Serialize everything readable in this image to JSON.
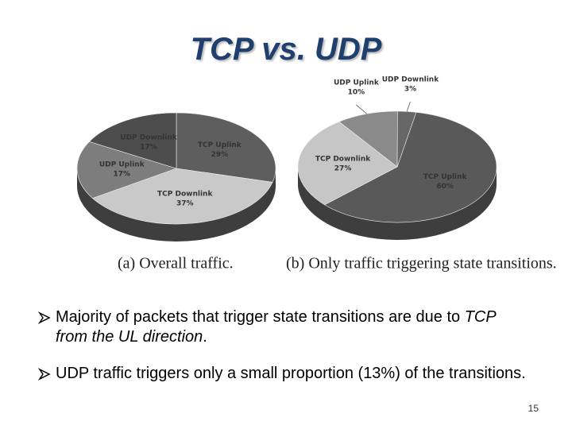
{
  "slide": {
    "title": "TCP vs. UDP",
    "bullets": [
      {
        "text": "Majority of packets that trigger state transitions are due to ",
        "emphasis": "TCP from the UL direction",
        "end": "."
      },
      {
        "text": "UDP traffic triggers only a small proportion (13%) of the transitions."
      }
    ],
    "page_number": 15
  },
  "chart_data": [
    {
      "type": "pie",
      "caption": "(a) Overall traffic.",
      "categories": [
        "TCP Uplink",
        "TCP Downlink",
        "UDP Uplink",
        "UDP Downlink"
      ],
      "values": [
        29,
        37,
        17,
        17
      ],
      "value_labels": [
        "29%",
        "37%",
        "17%",
        "17%"
      ],
      "colors": [
        "#5e5e5e",
        "#c9c9c9",
        "#7d7d7d",
        "#4d4d4d"
      ]
    },
    {
      "type": "pie",
      "caption": "(b) Only traffic triggering state transitions.",
      "categories": [
        "TCP Uplink",
        "TCP Downlink",
        "UDP Uplink",
        "UDP Downlink"
      ],
      "values": [
        60,
        27,
        10,
        3
      ],
      "value_labels": [
        "60%",
        "27%",
        "10%",
        "3%"
      ],
      "colors": [
        "#595959",
        "#c6c6c6",
        "#8a8a8a",
        "#666666"
      ]
    }
  ]
}
